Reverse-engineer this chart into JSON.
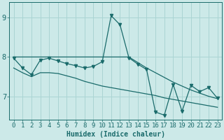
{
  "title": "",
  "xlabel": "Humidex (Indice chaleur)",
  "background_color": "#cce9e8",
  "grid_color": "#aad4d3",
  "line_color": "#1a6b6b",
  "x_values": [
    0,
    1,
    2,
    3,
    4,
    5,
    6,
    7,
    8,
    9,
    10,
    11,
    12,
    13,
    14,
    15,
    16,
    17,
    18,
    19,
    20,
    21,
    22,
    23
  ],
  "y_main": [
    7.97,
    7.72,
    7.55,
    7.92,
    7.97,
    7.9,
    7.83,
    7.78,
    7.72,
    7.76,
    7.88,
    9.05,
    8.82,
    7.98,
    7.82,
    7.68,
    6.6,
    6.52,
    7.3,
    6.62,
    7.28,
    7.12,
    7.22,
    6.95
  ],
  "y_upper": [
    8.0,
    8.0,
    8.0,
    8.0,
    8.0,
    8.0,
    8.0,
    8.0,
    8.0,
    8.0,
    8.0,
    8.0,
    8.0,
    8.0,
    7.86,
    7.72,
    7.6,
    7.48,
    7.36,
    7.26,
    7.16,
    7.08,
    7.0,
    6.94
  ],
  "y_lower": [
    7.72,
    7.6,
    7.5,
    7.6,
    7.6,
    7.58,
    7.52,
    7.46,
    7.38,
    7.32,
    7.26,
    7.22,
    7.18,
    7.14,
    7.1,
    7.06,
    7.02,
    6.96,
    6.92,
    6.88,
    6.84,
    6.8,
    6.76,
    6.72
  ],
  "ylim": [
    6.4,
    9.4
  ],
  "yticks": [
    7,
    8,
    9
  ],
  "xticks": [
    0,
    1,
    2,
    3,
    4,
    5,
    6,
    7,
    8,
    9,
    10,
    11,
    12,
    13,
    14,
    15,
    16,
    17,
    18,
    19,
    20,
    21,
    22,
    23
  ],
  "font_color": "#1a6b6b",
  "fontsize_label": 7,
  "fontsize_tick": 6.5
}
